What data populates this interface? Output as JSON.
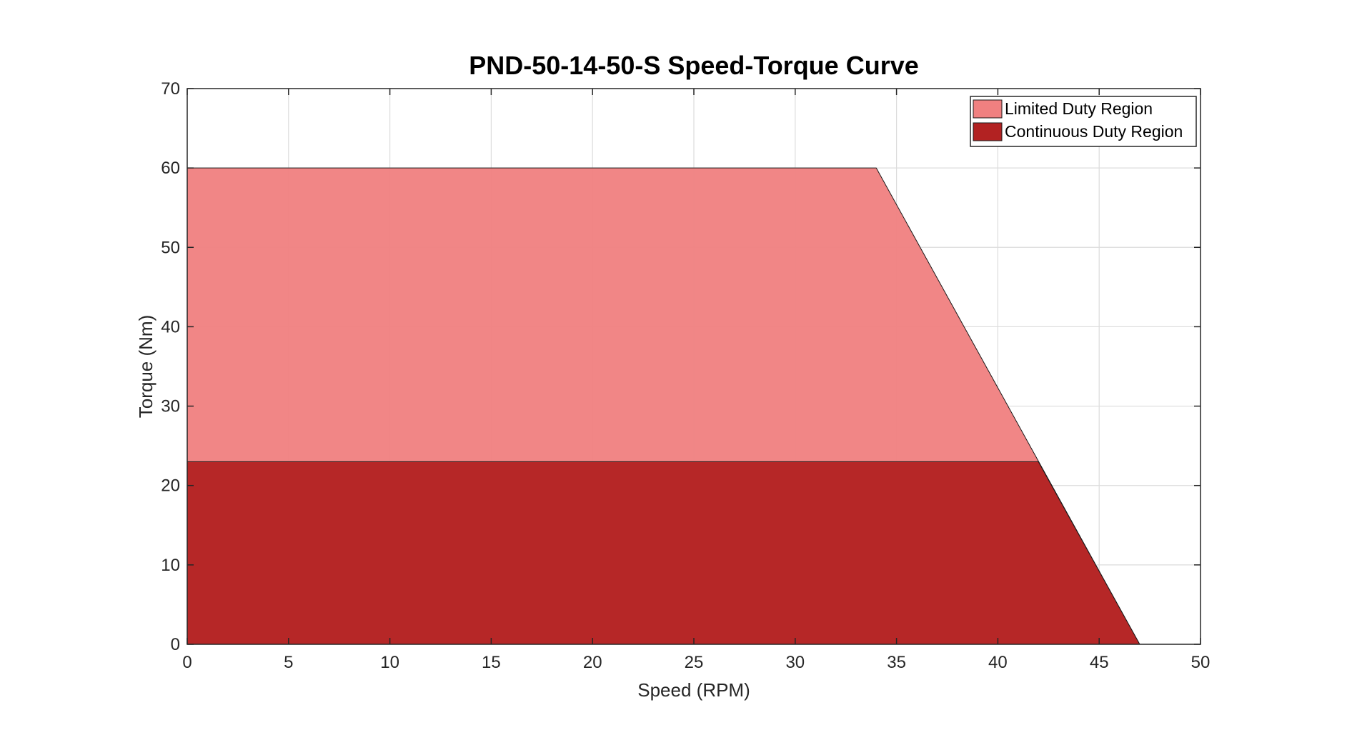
{
  "chart_data": {
    "type": "area",
    "title": "PND-50-14-50-S Speed-Torque Curve",
    "xlabel": "Speed (RPM)",
    "ylabel": "Torque (Nm)",
    "xlim": [
      0,
      50
    ],
    "ylim": [
      0,
      70
    ],
    "xticks": [
      0,
      5,
      10,
      15,
      20,
      25,
      30,
      35,
      40,
      45,
      50
    ],
    "yticks": [
      0,
      10,
      20,
      30,
      40,
      50,
      60,
      70
    ],
    "grid": true,
    "legend_position": "top-right",
    "series": [
      {
        "name": "Limited Duty Region",
        "color": "#f08080",
        "x": [
          0,
          34,
          47,
          0
        ],
        "y": [
          60,
          60,
          0,
          0
        ]
      },
      {
        "name": "Continuous Duty Region",
        "color": "#b22222",
        "x": [
          0,
          42,
          47,
          0
        ],
        "y": [
          23,
          23,
          0,
          0
        ]
      }
    ]
  }
}
